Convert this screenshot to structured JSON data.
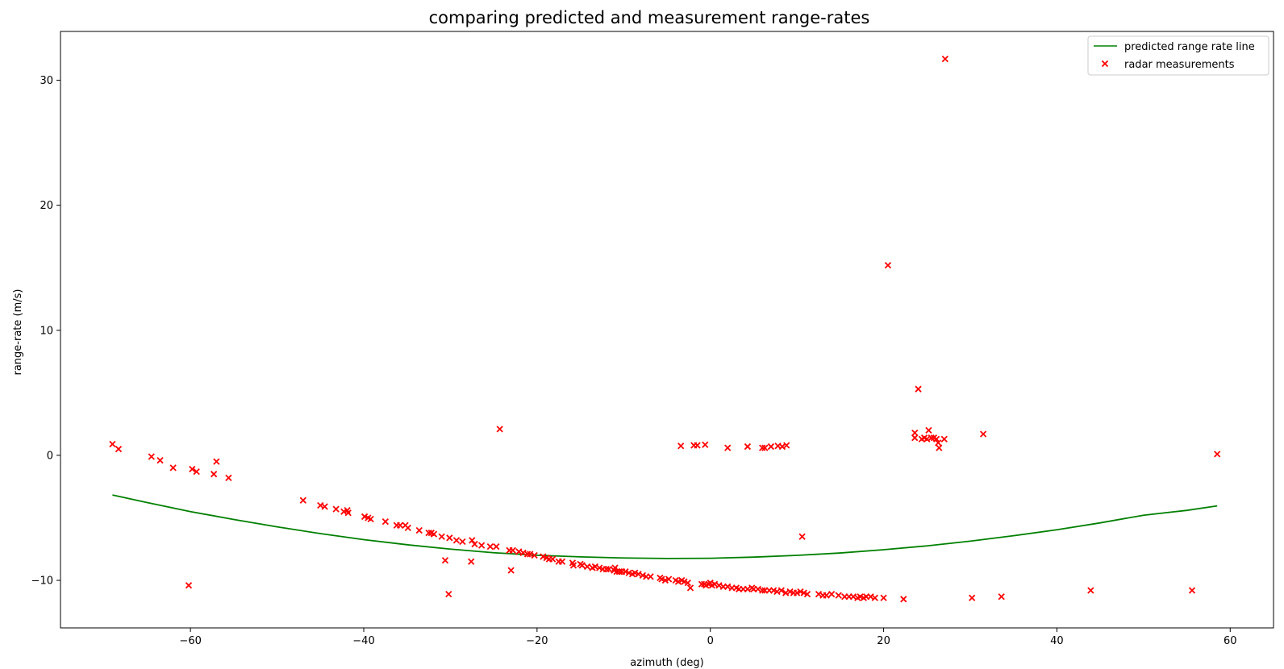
{
  "chart_data": {
    "type": "scatter",
    "title": "comparing predicted and measurement range-rates",
    "xlabel": "azimuth (deg)",
    "ylabel": "range-rate (m/s)",
    "xlim": [
      -75,
      65
    ],
    "ylim": [
      -13.8,
      33.9
    ],
    "xticks": [
      -60,
      -40,
      -20,
      0,
      20,
      40,
      60
    ],
    "yticks": [
      -10,
      0,
      10,
      20,
      30
    ],
    "grid": false,
    "legend_position": "top-right",
    "colors": {
      "line": "#008000",
      "marker": "#ff0000",
      "axes": "#000000"
    },
    "series": [
      {
        "name": "predicted range rate line",
        "kind": "line",
        "x": [
          -69,
          -65,
          -60,
          -55,
          -50,
          -45,
          -40,
          -35,
          -30,
          -25,
          -20,
          -15,
          -10,
          -5,
          0,
          5,
          10,
          15,
          20,
          25,
          30,
          35,
          40,
          45,
          50,
          55,
          58.5
        ],
        "y": [
          -3.17,
          -3.78,
          -4.5,
          -5.13,
          -5.72,
          -6.26,
          -6.74,
          -7.15,
          -7.5,
          -7.79,
          -7.99,
          -8.12,
          -8.21,
          -8.25,
          -8.23,
          -8.14,
          -8.0,
          -7.81,
          -7.55,
          -7.24,
          -6.86,
          -6.43,
          -5.95,
          -5.4,
          -4.79,
          -4.4,
          -4.04
        ]
      },
      {
        "name": "radar measurements",
        "kind": "scatter",
        "marker": "x",
        "points": [
          [
            -69,
            0.9
          ],
          [
            -68.3,
            0.5
          ],
          [
            -64.5,
            -0.1
          ],
          [
            -63.5,
            -0.4
          ],
          [
            -62,
            -1.0
          ],
          [
            -59.8,
            -1.1
          ],
          [
            -59.3,
            -1.3
          ],
          [
            -57.3,
            -1.5
          ],
          [
            -57.0,
            -0.5
          ],
          [
            -55.6,
            -1.8
          ],
          [
            -60.2,
            -10.4
          ],
          [
            -47,
            -3.6
          ],
          [
            -45,
            -4.0
          ],
          [
            -44.5,
            -4.1
          ],
          [
            -43.2,
            -4.3
          ],
          [
            -42.3,
            -4.5
          ],
          [
            -41.9,
            -4.4
          ],
          [
            -41.8,
            -4.6
          ],
          [
            -39.9,
            -4.9
          ],
          [
            -39.5,
            -5.0
          ],
          [
            -39.2,
            -5.1
          ],
          [
            -37.5,
            -5.3
          ],
          [
            -36.2,
            -5.6
          ],
          [
            -35.8,
            -5.6
          ],
          [
            -35.2,
            -5.6
          ],
          [
            -34.9,
            -5.8
          ],
          [
            -33.6,
            -6.0
          ],
          [
            -32.5,
            -6.2
          ],
          [
            -32.2,
            -6.2
          ],
          [
            -31.9,
            -6.3
          ],
          [
            -31,
            -6.5
          ],
          [
            -30.1,
            -6.6
          ],
          [
            -29.3,
            -6.8
          ],
          [
            -28.6,
            -6.9
          ],
          [
            -27.5,
            -6.8
          ],
          [
            -27.2,
            -7.1
          ],
          [
            -26.4,
            -7.2
          ],
          [
            -25.4,
            -7.3
          ],
          [
            -24.7,
            -7.3
          ],
          [
            -23.2,
            -7.6
          ],
          [
            -22.8,
            -7.6
          ],
          [
            -22.1,
            -7.7
          ],
          [
            -21.6,
            -7.8
          ],
          [
            -21.1,
            -7.9
          ],
          [
            -20.8,
            -7.9
          ],
          [
            -20.3,
            -8.0
          ],
          [
            -19.3,
            -8.1
          ],
          [
            -18.9,
            -8.2
          ],
          [
            -18.6,
            -8.3
          ],
          [
            -18.2,
            -8.3
          ],
          [
            -17.5,
            -8.5
          ],
          [
            -17.1,
            -8.5
          ],
          [
            -15.9,
            -8.6
          ],
          [
            -15.8,
            -8.8
          ],
          [
            -15.0,
            -8.7
          ],
          [
            -14.8,
            -8.8
          ],
          [
            -14.2,
            -8.9
          ],
          [
            -13.6,
            -9.0
          ],
          [
            -13.3,
            -8.9
          ],
          [
            -12.8,
            -9.0
          ],
          [
            -12.4,
            -9.1
          ],
          [
            -12.0,
            -9.1
          ],
          [
            -11.7,
            -9.1
          ],
          [
            -11.1,
            -9.2
          ],
          [
            -11.0,
            -9.0
          ],
          [
            -10.8,
            -9.3
          ],
          [
            -10.5,
            -9.3
          ],
          [
            -10.2,
            -9.3
          ],
          [
            -9.8,
            -9.3
          ],
          [
            -9.4,
            -9.4
          ],
          [
            -9.0,
            -9.5
          ],
          [
            -8.7,
            -9.4
          ],
          [
            -8.3,
            -9.5
          ],
          [
            -7.8,
            -9.6
          ],
          [
            -7.4,
            -9.7
          ],
          [
            -6.9,
            -9.7
          ],
          [
            -5.8,
            -9.8
          ],
          [
            -5.6,
            -9.9
          ],
          [
            -5.2,
            -10.0
          ],
          [
            -4.8,
            -9.9
          ],
          [
            -4.0,
            -10.0
          ],
          [
            -3.7,
            -10.1
          ],
          [
            -3.3,
            -10.0
          ],
          [
            -3.0,
            -10.1
          ],
          [
            -2.6,
            -10.2
          ],
          [
            -2.3,
            -10.6
          ],
          [
            -1.0,
            -10.3
          ],
          [
            -0.7,
            -10.3
          ],
          [
            -0.5,
            -10.4
          ],
          [
            -0.2,
            -10.3
          ],
          [
            0.0,
            -10.2
          ],
          [
            0.2,
            -10.4
          ],
          [
            0.5,
            -10.3
          ],
          [
            1.0,
            -10.4
          ],
          [
            1.5,
            -10.5
          ],
          [
            2.0,
            -10.5
          ],
          [
            2.5,
            -10.6
          ],
          [
            3.0,
            -10.6
          ],
          [
            3.3,
            -10.7
          ],
          [
            3.8,
            -10.7
          ],
          [
            4.3,
            -10.7
          ],
          [
            4.8,
            -10.6
          ],
          [
            5.0,
            -10.7
          ],
          [
            5.5,
            -10.7
          ],
          [
            6.0,
            -10.8
          ],
          [
            6.3,
            -10.8
          ],
          [
            6.8,
            -10.8
          ],
          [
            7.3,
            -10.8
          ],
          [
            7.7,
            -10.9
          ],
          [
            8.2,
            -10.8
          ],
          [
            8.7,
            -11.0
          ],
          [
            9.2,
            -10.9
          ],
          [
            9.6,
            -11.0
          ],
          [
            10.0,
            -11.0
          ],
          [
            10.4,
            -10.9
          ],
          [
            10.8,
            -11.0
          ],
          [
            11.2,
            -11.1
          ],
          [
            12.5,
            -11.1
          ],
          [
            13.0,
            -11.2
          ],
          [
            13.4,
            -11.2
          ],
          [
            14.0,
            -11.1
          ],
          [
            14.8,
            -11.2
          ],
          [
            15.5,
            -11.3
          ],
          [
            16.0,
            -11.3
          ],
          [
            16.5,
            -11.3
          ],
          [
            17.0,
            -11.4
          ],
          [
            17.3,
            -11.3
          ],
          [
            17.7,
            -11.4
          ],
          [
            18.0,
            -11.3
          ],
          [
            18.5,
            -11.3
          ],
          [
            19.0,
            -11.4
          ],
          [
            20.0,
            -11.4
          ],
          [
            22.3,
            -11.5
          ],
          [
            30.2,
            -11.4
          ],
          [
            33.6,
            -11.3
          ],
          [
            43.9,
            -10.8
          ],
          [
            55.6,
            -10.8
          ],
          [
            -30.6,
            -8.4
          ],
          [
            -27.6,
            -8.5
          ],
          [
            -23.0,
            -9.2
          ],
          [
            -30.2,
            -11.1
          ],
          [
            -24.3,
            2.1
          ],
          [
            -3.4,
            0.75
          ],
          [
            -1.9,
            0.8
          ],
          [
            -1.5,
            0.8
          ],
          [
            -0.6,
            0.85
          ],
          [
            2.0,
            0.6
          ],
          [
            4.3,
            0.7
          ],
          [
            6.0,
            0.6
          ],
          [
            6.3,
            0.6
          ],
          [
            7.0,
            0.7
          ],
          [
            7.8,
            0.75
          ],
          [
            8.3,
            0.7
          ],
          [
            8.8,
            0.8
          ],
          [
            10.6,
            -6.5
          ],
          [
            20.5,
            15.2
          ],
          [
            24.0,
            5.3
          ],
          [
            27.1,
            31.7
          ],
          [
            23.6,
            1.8
          ],
          [
            23.6,
            1.4
          ],
          [
            24.4,
            1.3
          ],
          [
            24.7,
            1.4
          ],
          [
            25.0,
            1.3
          ],
          [
            25.2,
            2.0
          ],
          [
            25.5,
            1.4
          ],
          [
            25.8,
            1.4
          ],
          [
            26.1,
            1.3
          ],
          [
            26.3,
            1.0
          ],
          [
            26.4,
            0.6
          ],
          [
            27.0,
            1.3
          ],
          [
            31.5,
            1.7
          ],
          [
            58.5,
            0.1
          ]
        ]
      }
    ]
  }
}
